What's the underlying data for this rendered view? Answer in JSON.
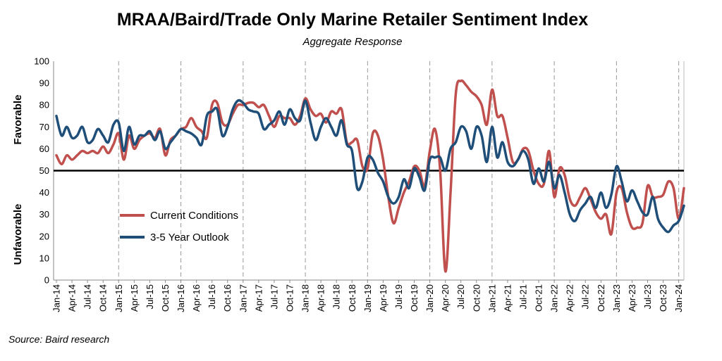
{
  "chart_data": {
    "type": "line",
    "title": "MRAA/Baird/Trade Only Marine Retailer Sentiment Index",
    "subtitle": "Aggregate Response",
    "source": "Source: Baird research",
    "ylabel_top": "Favorable",
    "ylabel_bottom": "Unfavorable",
    "ylim": [
      0,
      100
    ],
    "yticks": [
      0,
      10,
      20,
      30,
      40,
      50,
      60,
      70,
      80,
      90,
      100
    ],
    "reference_line": 50,
    "legend_position": "lower-left",
    "grid": "vertical dashed at January",
    "xticks": [
      "Jan-14",
      "Apr-14",
      "Jul-14",
      "Oct-14",
      "Jan-15",
      "Apr-15",
      "Jul-15",
      "Oct-15",
      "Jan-16",
      "Apr-16",
      "Jul-16",
      "Oct-16",
      "Jan-17",
      "Apr-17",
      "Jul-17",
      "Oct-17",
      "Jan-18",
      "Apr-18",
      "Jul-18",
      "Oct-18",
      "Jan-19",
      "Apr-19",
      "Jul-19",
      "Oct-19",
      "Jan-20",
      "Apr-20",
      "Jul-20",
      "Oct-20",
      "Jan-21",
      "Apr-21",
      "Jul-21",
      "Oct-21",
      "Jan-22",
      "Apr-22",
      "Jul-22",
      "Oct-22",
      "Jan-23",
      "Apr-23",
      "Jul-23",
      "Oct-23",
      "Jan-24"
    ],
    "series": [
      {
        "name": "Current Conditions",
        "color": "#c0504d",
        "points": [
          [
            "Jan-14",
            57
          ],
          [
            "Feb-14",
            53
          ],
          [
            "Mar-14",
            57
          ],
          [
            "Apr-14",
            55
          ],
          [
            "May-14",
            57
          ],
          [
            "Jun-14",
            59
          ],
          [
            "Jul-14",
            58
          ],
          [
            "Aug-14",
            59
          ],
          [
            "Sep-14",
            58
          ],
          [
            "Oct-14",
            61
          ],
          [
            "Nov-14",
            58
          ],
          [
            "Dec-14",
            62
          ],
          [
            "Jan-15",
            67
          ],
          [
            "Feb-15",
            55
          ],
          [
            "Mar-15",
            66
          ],
          [
            "Apr-15",
            60
          ],
          [
            "May-15",
            64
          ],
          [
            "Jun-15",
            66
          ],
          [
            "Jul-15",
            67
          ],
          [
            "Aug-15",
            65
          ],
          [
            "Sep-15",
            69
          ],
          [
            "Oct-15",
            57
          ],
          [
            "Nov-15",
            64
          ],
          [
            "Dec-15",
            66
          ],
          [
            "Jan-16",
            69
          ],
          [
            "Feb-16",
            70
          ],
          [
            "Mar-16",
            74
          ],
          [
            "Apr-16",
            70
          ],
          [
            "May-16",
            68
          ],
          [
            "Jun-16",
            65
          ],
          [
            "Jul-16",
            80
          ],
          [
            "Aug-16",
            81
          ],
          [
            "Sep-16",
            72
          ],
          [
            "Oct-16",
            71
          ],
          [
            "Nov-16",
            76
          ],
          [
            "Dec-16",
            80
          ],
          [
            "Jan-17",
            80
          ],
          [
            "Feb-17",
            81
          ],
          [
            "Mar-17",
            81
          ],
          [
            "Apr-17",
            79
          ],
          [
            "May-17",
            80
          ],
          [
            "Jun-17",
            75
          ],
          [
            "Jul-17",
            70
          ],
          [
            "Aug-17",
            75
          ],
          [
            "Sep-17",
            74
          ],
          [
            "Oct-17",
            74
          ],
          [
            "Nov-17",
            71
          ],
          [
            "Dec-17",
            75
          ],
          [
            "Jan-18",
            83
          ],
          [
            "Feb-18",
            78
          ],
          [
            "Mar-18",
            75
          ],
          [
            "Apr-18",
            76
          ],
          [
            "May-18",
            72
          ],
          [
            "Jun-18",
            77
          ],
          [
            "Jul-18",
            76
          ],
          [
            "Aug-18",
            78
          ],
          [
            "Sep-18",
            63
          ],
          [
            "Oct-18",
            63
          ],
          [
            "Nov-18",
            64
          ],
          [
            "Dec-18",
            52
          ],
          [
            "Jan-19",
            51
          ],
          [
            "Feb-19",
            67
          ],
          [
            "Mar-19",
            66
          ],
          [
            "Apr-19",
            55
          ],
          [
            "May-19",
            38
          ],
          [
            "Jun-19",
            26
          ],
          [
            "Jul-19",
            33
          ],
          [
            "Aug-19",
            40
          ],
          [
            "Sep-19",
            45
          ],
          [
            "Oct-19",
            52
          ],
          [
            "Nov-19",
            50
          ],
          [
            "Dec-19",
            43
          ],
          [
            "Jan-20",
            59
          ],
          [
            "Feb-20",
            69
          ],
          [
            "Mar-20",
            50
          ],
          [
            "Apr-20",
            4
          ],
          [
            "May-20",
            40
          ],
          [
            "Jun-20",
            85
          ],
          [
            "Jul-20",
            91
          ],
          [
            "Aug-20",
            89
          ],
          [
            "Sep-20",
            86
          ],
          [
            "Oct-20",
            84
          ],
          [
            "Nov-20",
            80
          ],
          [
            "Dec-20",
            71
          ],
          [
            "Jan-21",
            87
          ],
          [
            "Feb-21",
            75
          ],
          [
            "Mar-21",
            75
          ],
          [
            "Apr-21",
            65
          ],
          [
            "May-21",
            54
          ],
          [
            "Jun-21",
            55
          ],
          [
            "Jul-21",
            60
          ],
          [
            "Aug-21",
            59
          ],
          [
            "Sep-21",
            50
          ],
          [
            "Oct-21",
            44
          ],
          [
            "Nov-21",
            44
          ],
          [
            "Dec-21",
            59
          ],
          [
            "Jan-22",
            38
          ],
          [
            "Feb-22",
            51
          ],
          [
            "Mar-22",
            48
          ],
          [
            "Apr-22",
            37
          ],
          [
            "May-22",
            34
          ],
          [
            "Jun-22",
            38
          ],
          [
            "Jul-22",
            42
          ],
          [
            "Aug-22",
            37
          ],
          [
            "Sep-22",
            31
          ],
          [
            "Oct-22",
            28
          ],
          [
            "Nov-22",
            30
          ],
          [
            "Dec-22",
            21
          ],
          [
            "Jan-23",
            40
          ],
          [
            "Feb-23",
            42
          ],
          [
            "Mar-23",
            31
          ],
          [
            "Apr-23",
            24
          ],
          [
            "May-23",
            24
          ],
          [
            "Jun-23",
            26
          ],
          [
            "Jul-23",
            43
          ],
          [
            "Aug-23",
            38
          ],
          [
            "Sep-23",
            38
          ],
          [
            "Oct-23",
            39
          ],
          [
            "Nov-23",
            45
          ],
          [
            "Dec-23",
            42
          ],
          [
            "Jan-24",
            28
          ],
          [
            "Feb-24",
            42
          ]
        ]
      },
      {
        "name": "3-5 Year Outlook",
        "color": "#1f4e79",
        "points": [
          [
            "Jan-14",
            75
          ],
          [
            "Feb-14",
            66
          ],
          [
            "Mar-14",
            70
          ],
          [
            "Apr-14",
            65
          ],
          [
            "May-14",
            66
          ],
          [
            "Jun-14",
            70
          ],
          [
            "Jul-14",
            63
          ],
          [
            "Aug-14",
            64
          ],
          [
            "Sep-14",
            69
          ],
          [
            "Oct-14",
            66
          ],
          [
            "Nov-14",
            63
          ],
          [
            "Dec-14",
            71
          ],
          [
            "Jan-15",
            72
          ],
          [
            "Feb-15",
            59
          ],
          [
            "Mar-15",
            70
          ],
          [
            "Apr-15",
            62
          ],
          [
            "May-15",
            66
          ],
          [
            "Jun-15",
            66
          ],
          [
            "Jul-15",
            68
          ],
          [
            "Aug-15",
            64
          ],
          [
            "Sep-15",
            68
          ],
          [
            "Oct-15",
            60
          ],
          [
            "Nov-15",
            63
          ],
          [
            "Dec-15",
            66
          ],
          [
            "Jan-16",
            69
          ],
          [
            "Feb-16",
            68
          ],
          [
            "Mar-16",
            67
          ],
          [
            "Apr-16",
            65
          ],
          [
            "May-16",
            62
          ],
          [
            "Jun-16",
            75
          ],
          [
            "Jul-16",
            77
          ],
          [
            "Aug-16",
            78
          ],
          [
            "Sep-16",
            66
          ],
          [
            "Oct-16",
            70
          ],
          [
            "Nov-16",
            78
          ],
          [
            "Dec-16",
            82
          ],
          [
            "Jan-17",
            81
          ],
          [
            "Feb-17",
            78
          ],
          [
            "Mar-17",
            77
          ],
          [
            "Apr-17",
            76
          ],
          [
            "May-17",
            69
          ],
          [
            "Jun-17",
            71
          ],
          [
            "Jul-17",
            73
          ],
          [
            "Aug-17",
            77
          ],
          [
            "Sep-17",
            71
          ],
          [
            "Oct-17",
            78
          ],
          [
            "Nov-17",
            74
          ],
          [
            "Dec-17",
            73
          ],
          [
            "Jan-18",
            82
          ],
          [
            "Feb-18",
            72
          ],
          [
            "Mar-18",
            64
          ],
          [
            "Apr-18",
            70
          ],
          [
            "May-18",
            74
          ],
          [
            "Jun-18",
            70
          ],
          [
            "Jul-18",
            66
          ],
          [
            "Aug-18",
            73
          ],
          [
            "Sep-18",
            62
          ],
          [
            "Oct-18",
            59
          ],
          [
            "Nov-18",
            42
          ],
          [
            "Dec-18",
            45
          ],
          [
            "Jan-19",
            56
          ],
          [
            "Feb-19",
            55
          ],
          [
            "Mar-19",
            49
          ],
          [
            "Apr-19",
            45
          ],
          [
            "May-19",
            38
          ],
          [
            "Jun-19",
            35
          ],
          [
            "Jul-19",
            38
          ],
          [
            "Aug-19",
            46
          ],
          [
            "Sep-19",
            42
          ],
          [
            "Oct-19",
            51
          ],
          [
            "Nov-19",
            47
          ],
          [
            "Dec-19",
            41
          ],
          [
            "Jan-20",
            55
          ],
          [
            "Feb-20",
            56
          ],
          [
            "Mar-20",
            56
          ],
          [
            "Apr-20",
            50
          ],
          [
            "May-20",
            60
          ],
          [
            "Jun-20",
            63
          ],
          [
            "Jul-20",
            70
          ],
          [
            "Aug-20",
            68
          ],
          [
            "Sep-20",
            60
          ],
          [
            "Oct-20",
            70
          ],
          [
            "Nov-20",
            66
          ],
          [
            "Dec-20",
            54
          ],
          [
            "Jan-21",
            70
          ],
          [
            "Feb-21",
            56
          ],
          [
            "Mar-21",
            63
          ],
          [
            "Apr-21",
            54
          ],
          [
            "May-21",
            52
          ],
          [
            "Jun-21",
            55
          ],
          [
            "Jul-21",
            59
          ],
          [
            "Aug-21",
            55
          ],
          [
            "Sep-21",
            44
          ],
          [
            "Oct-21",
            51
          ],
          [
            "Nov-21",
            45
          ],
          [
            "Dec-21",
            54
          ],
          [
            "Jan-22",
            42
          ],
          [
            "Feb-22",
            48
          ],
          [
            "Mar-22",
            40
          ],
          [
            "Apr-22",
            30
          ],
          [
            "May-22",
            27
          ],
          [
            "Jun-22",
            32
          ],
          [
            "Jul-22",
            35
          ],
          [
            "Aug-22",
            38
          ],
          [
            "Sep-22",
            33
          ],
          [
            "Oct-22",
            40
          ],
          [
            "Nov-22",
            33
          ],
          [
            "Dec-22",
            39
          ],
          [
            "Jan-23",
            52
          ],
          [
            "Feb-23",
            45
          ],
          [
            "Mar-23",
            36
          ],
          [
            "Apr-23",
            41
          ],
          [
            "May-23",
            36
          ],
          [
            "Jun-23",
            31
          ],
          [
            "Jul-23",
            30
          ],
          [
            "Aug-23",
            38
          ],
          [
            "Sep-23",
            28
          ],
          [
            "Oct-23",
            24
          ],
          [
            "Nov-23",
            22
          ],
          [
            "Dec-23",
            25
          ],
          [
            "Jan-24",
            27
          ],
          [
            "Feb-24",
            34
          ]
        ]
      }
    ]
  }
}
